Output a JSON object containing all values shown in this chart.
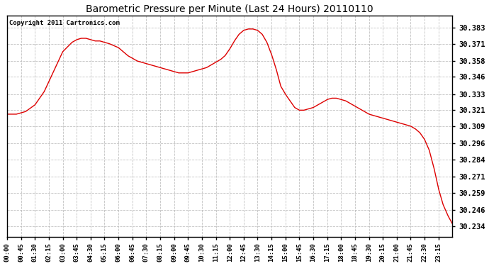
{
  "title": "Barometric Pressure per Minute (Last 24 Hours) 20110110",
  "copyright": "Copyright 2011 Cartronics.com",
  "line_color": "#dd0000",
  "bg_color": "#ffffff",
  "plot_bg_color": "#ffffff",
  "grid_color": "#bbbbbb",
  "yticks": [
    30.234,
    30.246,
    30.259,
    30.271,
    30.284,
    30.296,
    30.309,
    30.321,
    30.333,
    30.346,
    30.358,
    30.371,
    30.383
  ],
  "ylim_min": 30.226,
  "ylim_max": 30.392,
  "xtick_labels": [
    "00:00",
    "00:45",
    "01:30",
    "02:15",
    "03:00",
    "03:45",
    "04:30",
    "05:15",
    "06:00",
    "06:45",
    "07:30",
    "08:15",
    "09:00",
    "09:45",
    "10:30",
    "11:15",
    "12:00",
    "12:45",
    "13:30",
    "14:15",
    "15:00",
    "15:45",
    "16:30",
    "17:15",
    "18:00",
    "18:45",
    "19:30",
    "20:15",
    "21:00",
    "21:45",
    "22:30",
    "23:15"
  ],
  "waypoints_x": [
    0,
    30,
    60,
    90,
    120,
    150,
    180,
    210,
    225,
    240,
    255,
    270,
    285,
    300,
    330,
    360,
    390,
    405,
    420,
    435,
    450,
    465,
    480,
    495,
    510,
    525,
    540,
    555,
    570,
    585,
    600,
    615,
    630,
    645,
    660,
    675,
    690,
    705,
    720,
    735,
    750,
    765,
    780,
    795,
    810,
    825,
    840,
    855,
    870,
    885,
    900,
    915,
    930,
    945,
    960,
    975,
    990,
    1005,
    1020,
    1035,
    1050,
    1065,
    1080,
    1095,
    1110,
    1125,
    1140,
    1155,
    1170,
    1185,
    1200,
    1215,
    1230,
    1245,
    1260,
    1275,
    1290,
    1305,
    1320,
    1335,
    1350,
    1365,
    1380,
    1395,
    1410,
    1425,
    1439
  ],
  "waypoints_y": [
    30.318,
    30.318,
    30.32,
    30.325,
    30.335,
    30.35,
    30.365,
    30.372,
    30.374,
    30.375,
    30.375,
    30.374,
    30.373,
    30.373,
    30.371,
    30.368,
    30.362,
    30.36,
    30.358,
    30.357,
    30.356,
    30.355,
    30.354,
    30.353,
    30.352,
    30.351,
    30.35,
    30.349,
    30.349,
    30.349,
    30.35,
    30.351,
    30.352,
    30.353,
    30.355,
    30.357,
    30.359,
    30.362,
    30.367,
    30.373,
    30.378,
    30.381,
    30.382,
    30.382,
    30.381,
    30.378,
    30.372,
    30.363,
    30.352,
    30.339,
    30.333,
    30.328,
    30.323,
    30.321,
    30.321,
    30.322,
    30.323,
    30.325,
    30.327,
    30.329,
    30.33,
    30.33,
    30.329,
    30.328,
    30.326,
    30.324,
    30.322,
    30.32,
    30.318,
    30.317,
    30.316,
    30.315,
    30.314,
    30.313,
    30.312,
    30.311,
    30.31,
    30.309,
    30.307,
    30.304,
    30.299,
    30.291,
    30.278,
    30.262,
    30.25,
    30.242,
    30.236
  ]
}
